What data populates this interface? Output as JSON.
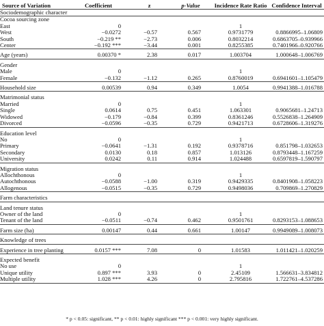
{
  "columns": [
    "Source of Variation",
    "Coefficient",
    "z",
    "p-Value",
    "Incidence Rate Ratio",
    "Confidence Interval"
  ],
  "rows": [
    {
      "kind": "section",
      "label": "Sociodemographic characteristics",
      "cells": [
        "",
        "",
        "",
        "",
        ""
      ]
    },
    {
      "kind": "group",
      "top": true,
      "label": "Cocoa sourcing zone",
      "cells": [
        "",
        "",
        "",
        "",
        ""
      ]
    },
    {
      "kind": "cat",
      "label": "East",
      "cells": [
        "0",
        "",
        "",
        "1",
        ""
      ]
    },
    {
      "kind": "cat",
      "label": "West",
      "cells": [
        "−0.0272",
        "−0.57",
        "0.567",
        "0.9731779",
        "0.8866995–1.06809"
      ]
    },
    {
      "kind": "cat",
      "label": "South",
      "cells": [
        "−0.219 **",
        "−2.73",
        "0.006",
        "0.8032214",
        "0.6863705–0.939966"
      ]
    },
    {
      "kind": "cat",
      "label": "Center",
      "last": true,
      "cells": [
        "−0.192 ***",
        "−3.44",
        "0.001",
        "0.8255385",
        "0.7401966–0.920766"
      ]
    },
    {
      "kind": "group",
      "label": "Age (years)",
      "last": true,
      "cells": [
        "0.00370 *",
        "2.38",
        "0.017",
        "1.003704",
        "1.000648–1.006769"
      ]
    },
    {
      "kind": "group",
      "label": "Gender",
      "cells": [
        "",
        "",
        "",
        "",
        ""
      ]
    },
    {
      "kind": "cat",
      "label": "Male",
      "cells": [
        "0",
        "",
        "",
        "1",
        ""
      ]
    },
    {
      "kind": "cat",
      "label": "Female",
      "last": true,
      "cells": [
        "−0.132",
        "−1.12",
        "0.265",
        "0.8760019",
        "0.6941601–1.105479"
      ]
    },
    {
      "kind": "group",
      "label": "Household size",
      "last": true,
      "cells": [
        "0.00539",
        "0.94",
        "0.349",
        "1.0054",
        "0.9941388–1.016788"
      ]
    },
    {
      "kind": "group",
      "label": "Matrimonial status",
      "cells": [
        "",
        "",
        "",
        "",
        ""
      ]
    },
    {
      "kind": "cat",
      "label": "Married",
      "cells": [
        "0",
        "",
        "",
        "1",
        ""
      ]
    },
    {
      "kind": "cat",
      "label": "Single",
      "cells": [
        "0.0614",
        "0.75",
        "0.451",
        "1.063301",
        "0.9065681–1.24713"
      ]
    },
    {
      "kind": "cat",
      "label": "Widowed",
      "cells": [
        "−0.179",
        "−0.84",
        "0.399",
        "0.8361246",
        "0.5526838–1.264909"
      ]
    },
    {
      "kind": "cat",
      "label": "Divorced",
      "last": true,
      "cells": [
        "−0.0596",
        "−0.35",
        "0.729",
        "0.9421713",
        "0.6728606–1.319276"
      ]
    },
    {
      "kind": "group",
      "label": "Education level",
      "cells": [
        "",
        "",
        "",
        "",
        ""
      ]
    },
    {
      "kind": "cat",
      "label": "No",
      "cells": [
        "0",
        "",
        "",
        "1",
        ""
      ]
    },
    {
      "kind": "cat",
      "label": "Primary",
      "cells": [
        "−0.0641",
        "−1.31",
        "0.192",
        "0.9378716",
        "0.851798–1.032653"
      ]
    },
    {
      "kind": "cat",
      "label": "Secondary",
      "cells": [
        "0.0130",
        "0.18",
        "0.857",
        "1.013126",
        "0.8793448–1.167259"
      ]
    },
    {
      "kind": "cat",
      "label": "University",
      "last": true,
      "cells": [
        "0.0242",
        "0.11",
        "0.914",
        "1.024488",
        "0.6597819–1.590797"
      ]
    },
    {
      "kind": "group",
      "label": "Migration status",
      "cells": [
        "",
        "",
        "",
        "",
        ""
      ]
    },
    {
      "kind": "cat",
      "label": "Allochthonous",
      "cells": [
        "0",
        "",
        "",
        "1",
        ""
      ]
    },
    {
      "kind": "cat",
      "label": "Autochthonous",
      "cells": [
        "−0.0588",
        "−1.00",
        "0.319",
        "0.9429335",
        "0.8401908–1.058223"
      ]
    },
    {
      "kind": "cat",
      "label": "Allogenous",
      "last": true,
      "cells": [
        "−0.0515",
        "−0.35",
        "0.729",
        "0.9498036",
        "0.709869–1.270829"
      ]
    },
    {
      "kind": "section",
      "label": "Farm characteristics",
      "last": true,
      "cells": [
        "",
        "",
        "",
        "",
        ""
      ]
    },
    {
      "kind": "group",
      "label": "Land tenure status",
      "cells": [
        "",
        "",
        "",
        "",
        ""
      ]
    },
    {
      "kind": "cat",
      "label": "Owner of the land",
      "cells": [
        "0",
        "",
        "",
        "1",
        ""
      ]
    },
    {
      "kind": "cat",
      "label": "Tenant of the land",
      "last": true,
      "cells": [
        "−0.0511",
        "−0.74",
        "0.462",
        "0.9501761",
        "0.8293153–1.088653"
      ]
    },
    {
      "kind": "group",
      "label": "Farm size (ha)",
      "last": true,
      "cells": [
        "0.00147",
        "0.44",
        "0.661",
        "1.00147",
        "0.9949089–1.008073"
      ]
    },
    {
      "kind": "section",
      "label": "Knowledge of trees",
      "last": true,
      "cells": [
        "",
        "",
        "",
        "",
        ""
      ]
    },
    {
      "kind": "group",
      "label": "Experience in tree planting",
      "wrap": true,
      "last": true,
      "cells": [
        "0.0157 ***",
        "7.08",
        "0",
        "1.01583",
        "1.011421–1.020259"
      ]
    },
    {
      "kind": "group",
      "label": "Expected benefit",
      "cells": [
        "",
        "",
        "",
        "",
        ""
      ]
    },
    {
      "kind": "cat",
      "label": "No use",
      "cells": [
        "0",
        "",
        "",
        "1",
        ""
      ]
    },
    {
      "kind": "cat",
      "label": "Unique utility",
      "cells": [
        "0.897 ***",
        "3.93",
        "0",
        "2.45109",
        "1.566631–3.834812"
      ]
    },
    {
      "kind": "cat",
      "label": "Multiple utility",
      "last": true,
      "cells": [
        "1.028 ***",
        "4.26",
        "0",
        "2.795816",
        "1.722761–4.537286"
      ]
    }
  ],
  "footnote": "* p < 0.05: significant, ** p < 0.01: highly significant *** p < 0.001: very highly significant."
}
